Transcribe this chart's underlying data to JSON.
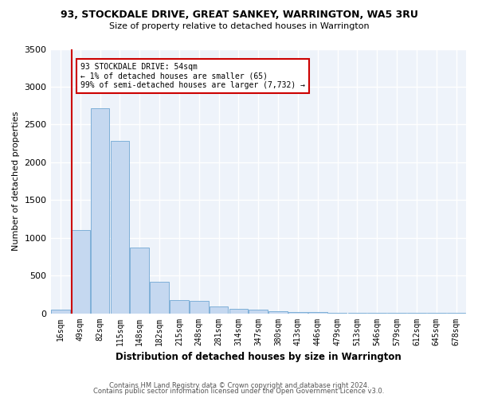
{
  "title": "93, STOCKDALE DRIVE, GREAT SANKEY, WARRINGTON, WA5 3RU",
  "subtitle": "Size of property relative to detached houses in Warrington",
  "xlabel": "Distribution of detached houses by size in Warrington",
  "ylabel": "Number of detached properties",
  "categories": [
    "16sqm",
    "49sqm",
    "82sqm",
    "115sqm",
    "148sqm",
    "182sqm",
    "215sqm",
    "248sqm",
    "281sqm",
    "314sqm",
    "347sqm",
    "380sqm",
    "413sqm",
    "446sqm",
    "479sqm",
    "513sqm",
    "546sqm",
    "579sqm",
    "612sqm",
    "645sqm",
    "678sqm"
  ],
  "values": [
    50,
    1100,
    2720,
    2280,
    875,
    415,
    170,
    160,
    85,
    60,
    45,
    25,
    20,
    15,
    10,
    7,
    5,
    4,
    3,
    2,
    1
  ],
  "bar_color": "#c5d8f0",
  "bar_edge_color": "#7fb0d8",
  "vline_color": "#cc0000",
  "annotation_text": "93 STOCKDALE DRIVE: 54sqm\n← 1% of detached houses are smaller (65)\n99% of semi-detached houses are larger (7,732) →",
  "annotation_box_color": "#ffffff",
  "annotation_border_color": "#cc0000",
  "ylim": [
    0,
    3500
  ],
  "yticks": [
    0,
    500,
    1000,
    1500,
    2000,
    2500,
    3000,
    3500
  ],
  "background_color": "#eef3fa",
  "grid_color": "#ffffff",
  "footer1": "Contains HM Land Registry data © Crown copyright and database right 2024.",
  "footer2": "Contains public sector information licensed under the Open Government Licence v3.0."
}
